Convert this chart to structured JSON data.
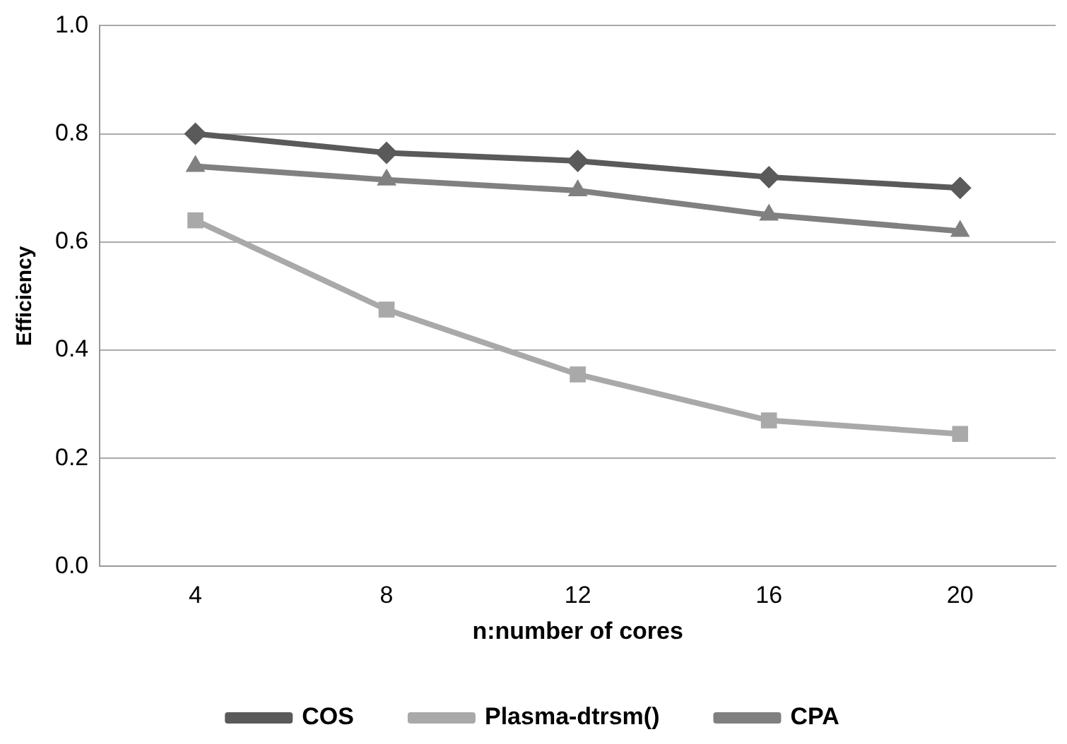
{
  "chart_data": {
    "type": "line",
    "xlabel": "n:number of cores",
    "ylabel": "Efficiency",
    "categories": [
      "4",
      "8",
      "12",
      "16",
      "20"
    ],
    "series": [
      {
        "name": "COS",
        "color": "#5a5a5a",
        "marker": "diamond",
        "values": [
          0.8,
          0.765,
          0.75,
          0.72,
          0.7
        ]
      },
      {
        "name": "Plasma-dtrsm()",
        "color": "#a9a9a9",
        "marker": "square",
        "values": [
          0.64,
          0.475,
          0.355,
          0.27,
          0.245
        ]
      },
      {
        "name": "CPA",
        "color": "#808080",
        "marker": "triangle",
        "values": [
          0.74,
          0.715,
          0.695,
          0.65,
          0.62
        ]
      }
    ],
    "ylim": [
      0,
      1
    ],
    "yticks": [
      {
        "value": 0,
        "label": "0.0"
      },
      0.2,
      0.4,
      0.6,
      0.8,
      {
        "value": 1,
        "label": "1.0"
      }
    ],
    "grid": "y",
    "legend": "bottom",
    "line_style": "solid"
  }
}
